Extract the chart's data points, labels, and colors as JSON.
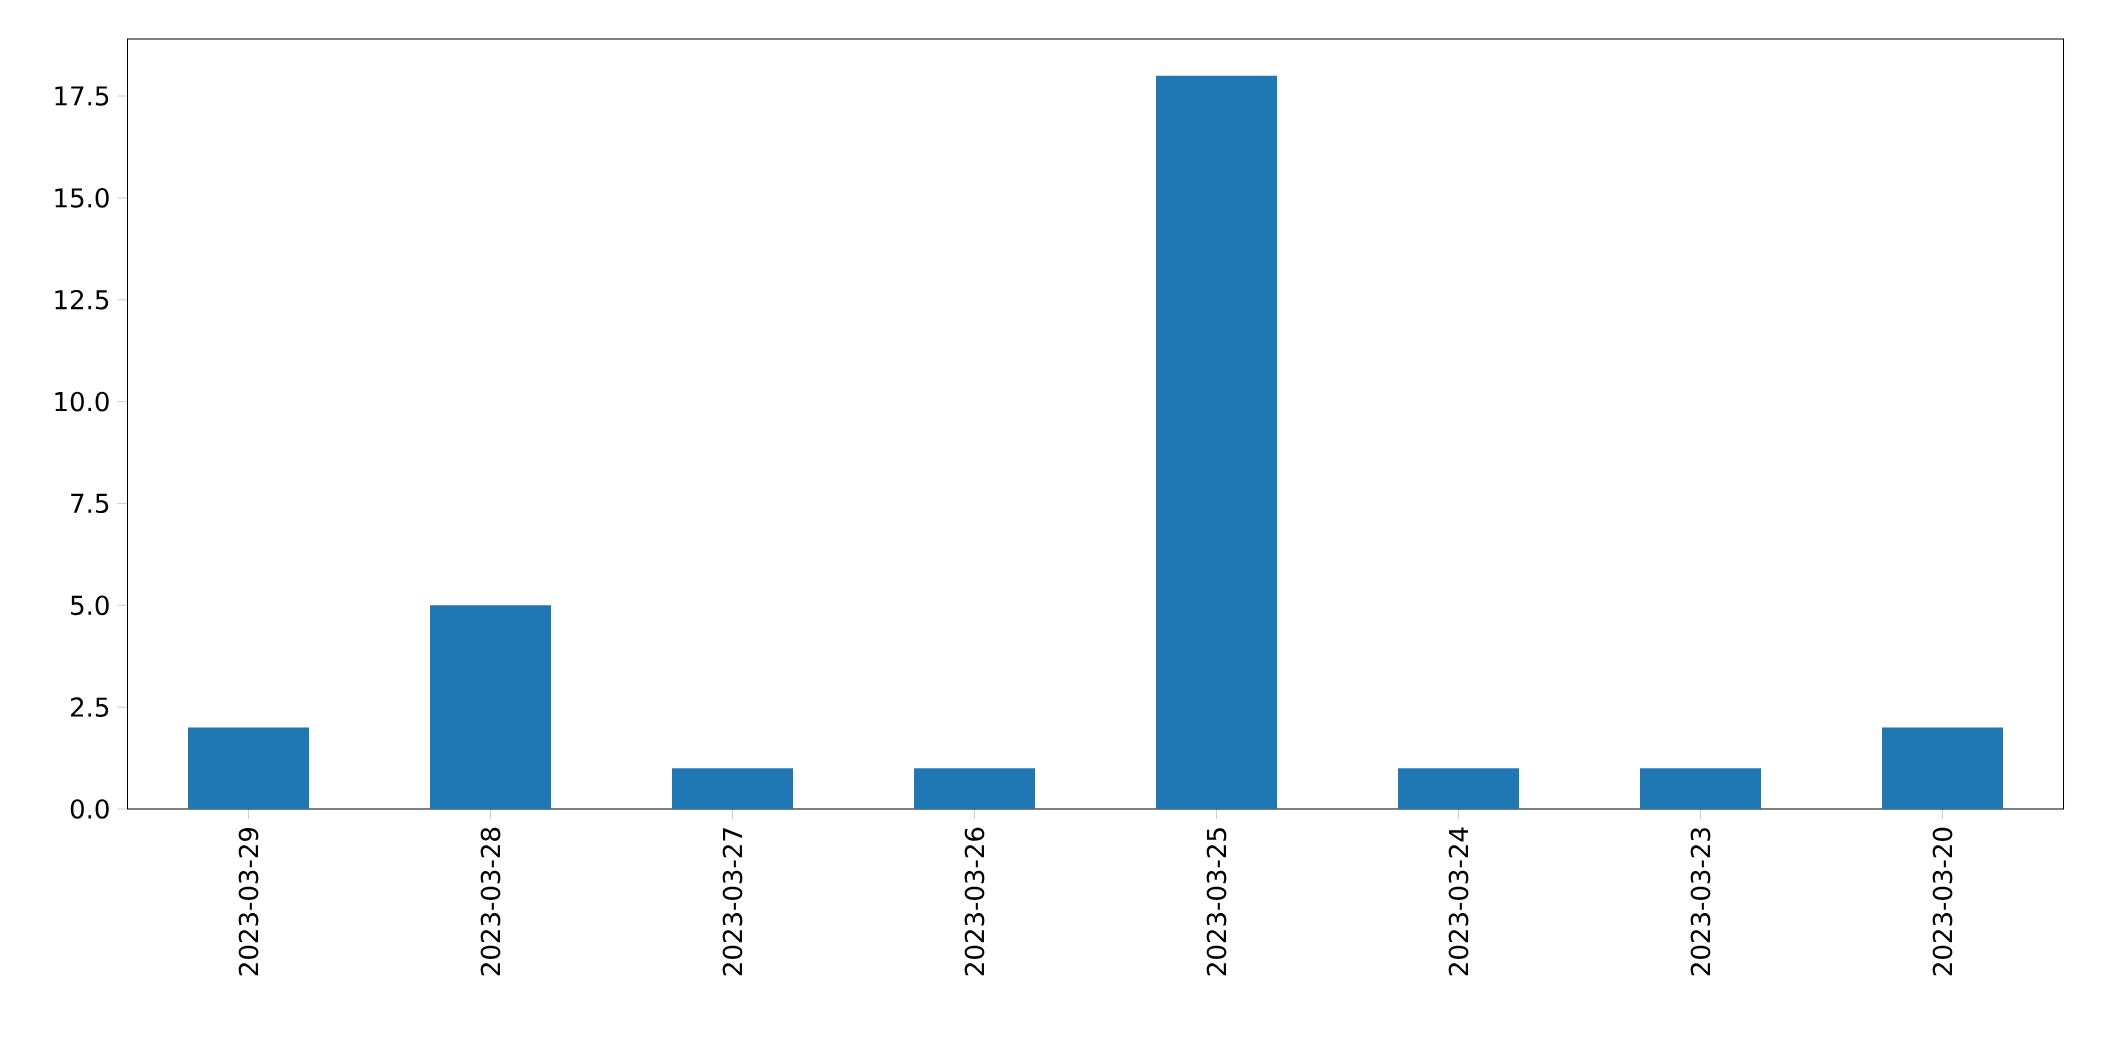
{
  "chart_data": {
    "type": "bar",
    "categories": [
      "2023-03-29",
      "2023-03-28",
      "2023-03-27",
      "2023-03-26",
      "2023-03-25",
      "2023-03-24",
      "2023-03-23",
      "2023-03-20"
    ],
    "values": [
      2,
      5,
      1,
      1,
      18,
      1,
      1,
      2
    ],
    "color": "#1f77b4",
    "ylim": [
      0,
      18.9
    ],
    "yticks": [
      {
        "value": 0,
        "label": "0.0"
      },
      {
        "value": 2.5,
        "label": "2.5"
      },
      {
        "value": 5,
        "label": "5.0"
      },
      {
        "value": 7.5,
        "label": "7.5"
      },
      {
        "value": 10,
        "label": "10.0"
      },
      {
        "value": 12.5,
        "label": "12.5"
      },
      {
        "value": 15,
        "label": "15.0"
      },
      {
        "value": 17.5,
        "label": "17.5"
      }
    ]
  }
}
